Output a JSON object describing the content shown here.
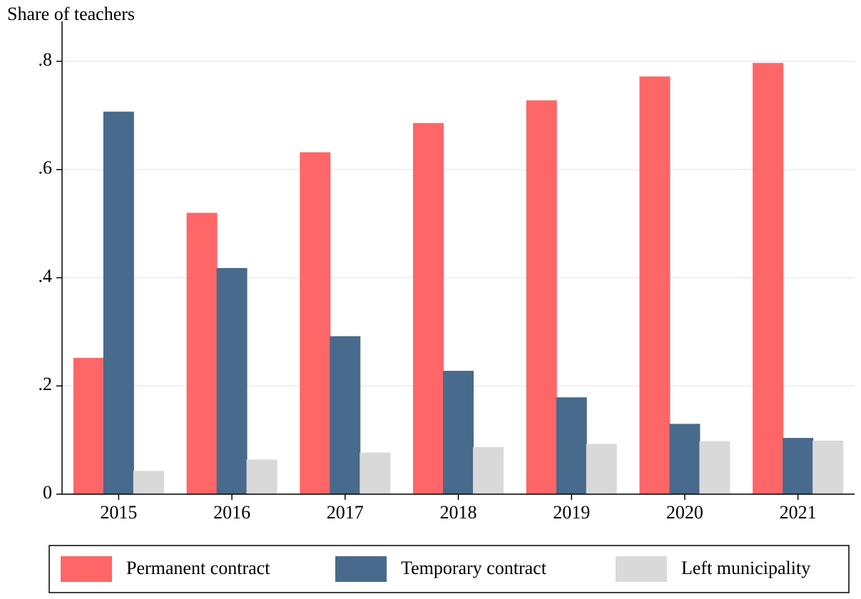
{
  "chart_data": {
    "type": "bar",
    "y_label": "Share of teachers",
    "categories": [
      "2015",
      "2016",
      "2017",
      "2018",
      "2019",
      "2020",
      "2021"
    ],
    "series": [
      {
        "name": "Permanent contract",
        "color": "#fe6667",
        "values": [
          0.252,
          0.52,
          0.632,
          0.686,
          0.728,
          0.772,
          0.797
        ]
      },
      {
        "name": "Temporary contract",
        "color": "#486a8c",
        "values": [
          0.707,
          0.418,
          0.292,
          0.228,
          0.179,
          0.13,
          0.104
        ]
      },
      {
        "name": "Left municipality",
        "color": "#d9d9d9",
        "values": [
          0.043,
          0.064,
          0.077,
          0.087,
          0.093,
          0.098,
          0.099
        ]
      }
    ],
    "ylim": [
      0,
      0.8
    ],
    "yticks": [
      0,
      {
        "value": 0.2,
        "label": ".2"
      },
      {
        "value": 0.4,
        "label": ".4"
      },
      {
        "value": 0.6,
        "label": ".6"
      },
      {
        "value": 0.8,
        "label": ".8"
      }
    ],
    "grid": true,
    "legend": "bottom"
  }
}
